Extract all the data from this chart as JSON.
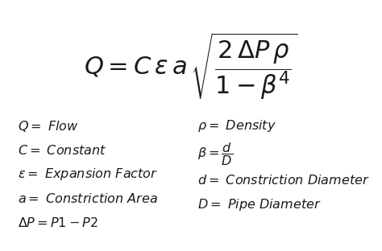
{
  "bg_color": "#ffffff",
  "text_color": "#1a1a1a",
  "main_fontsize": 22,
  "def_fontsize": 11.5,
  "fig_width": 4.74,
  "fig_height": 3.12,
  "fig_dpi": 100
}
